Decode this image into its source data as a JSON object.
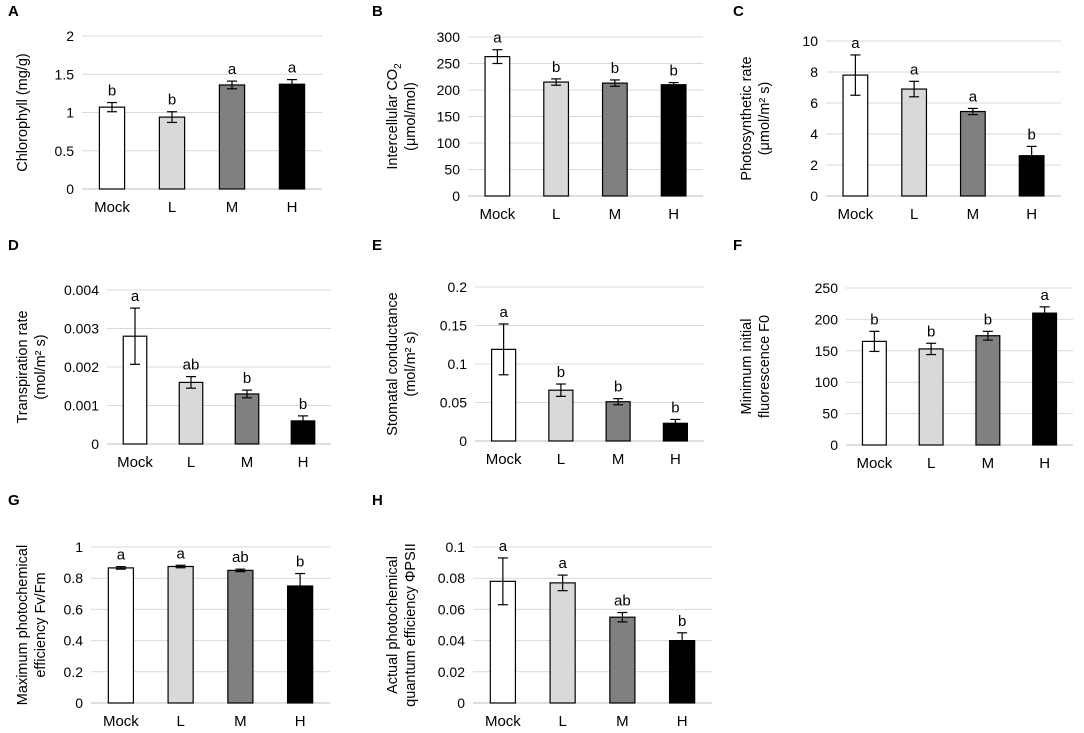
{
  "chart_data": [
    {
      "type": "bar",
      "panel": "A",
      "categories": [
        "Mock",
        "L",
        "M",
        "H"
      ],
      "values": [
        1.07,
        0.94,
        1.36,
        1.37
      ],
      "errors": [
        0.06,
        0.07,
        0.05,
        0.06
      ],
      "significance": [
        "b",
        "b",
        "a",
        "a"
      ],
      "ylabel_lines": [
        "Chlorophyll (mg/g)"
      ],
      "ylim": [
        0,
        2
      ],
      "yticks": [
        "0",
        "0.5",
        "1",
        "1.5",
        "2"
      ],
      "bar_colors": [
        "#ffffff",
        "#d9d9d9",
        "#808080",
        "#000000"
      ],
      "grid": true
    },
    {
      "type": "bar",
      "panel": "B",
      "categories": [
        "Mock",
        "L",
        "M",
        "H"
      ],
      "values": [
        263,
        215,
        213,
        210
      ],
      "errors": [
        13,
        6,
        6,
        4
      ],
      "significance": [
        "a",
        "b",
        "b",
        "b"
      ],
      "ylabel_lines": [
        "Intercellular CO",
        "(μmol/mol)"
      ],
      "ylabel_sub": "2",
      "ylim": [
        0,
        300
      ],
      "yticks": [
        "0",
        "50",
        "100",
        "150",
        "200",
        "250",
        "300"
      ],
      "bar_colors": [
        "#ffffff",
        "#d9d9d9",
        "#808080",
        "#000000"
      ],
      "grid": true
    },
    {
      "type": "bar",
      "panel": "C",
      "categories": [
        "Mock",
        "L",
        "M",
        "H"
      ],
      "values": [
        7.8,
        6.9,
        5.45,
        2.6
      ],
      "errors": [
        1.3,
        0.5,
        0.2,
        0.6
      ],
      "significance": [
        "a",
        "a",
        "a",
        "b"
      ],
      "ylabel_lines": [
        "Photosynthetic rate",
        "(μmol/m² s)"
      ],
      "ylim": [
        0,
        10
      ],
      "yticks": [
        "0",
        "2",
        "4",
        "6",
        "8",
        "10"
      ],
      "bar_colors": [
        "#ffffff",
        "#d9d9d9",
        "#808080",
        "#000000"
      ],
      "grid": true
    },
    {
      "type": "bar",
      "panel": "D",
      "categories": [
        "Mock",
        "L",
        "M",
        "H"
      ],
      "values": [
        0.0028,
        0.0016,
        0.0013,
        0.0006
      ],
      "errors": [
        0.00073,
        0.00015,
        0.0001,
        0.00013
      ],
      "significance": [
        "a",
        "ab",
        "b",
        "b"
      ],
      "ylabel_lines": [
        "Transpiration rate",
        "(mol/m² s)"
      ],
      "ylim": [
        0,
        0.004
      ],
      "yticks": [
        "0",
        "0.001",
        "0.002",
        "0.003",
        "0.004"
      ],
      "bar_colors": [
        "#ffffff",
        "#d9d9d9",
        "#808080",
        "#000000"
      ],
      "grid": true
    },
    {
      "type": "bar",
      "panel": "E",
      "categories": [
        "Mock",
        "L",
        "M",
        "H"
      ],
      "values": [
        0.119,
        0.066,
        0.051,
        0.023
      ],
      "errors": [
        0.033,
        0.008,
        0.004,
        0.005
      ],
      "significance": [
        "a",
        "b",
        "b",
        "b"
      ],
      "ylabel_lines": [
        "Stomatal conductance",
        "(mol/m² s)"
      ],
      "ylim": [
        0,
        0.2
      ],
      "yticks": [
        "0",
        "0.05",
        "0.1",
        "0.15",
        "0.2"
      ],
      "bar_colors": [
        "#ffffff",
        "#d9d9d9",
        "#808080",
        "#000000"
      ],
      "grid": true
    },
    {
      "type": "bar",
      "panel": "F",
      "categories": [
        "Mock",
        "L",
        "M",
        "H"
      ],
      "values": [
        165,
        153,
        174,
        210
      ],
      "errors": [
        16,
        9,
        7,
        10
      ],
      "significance": [
        "b",
        "b",
        "b",
        "a"
      ],
      "ylabel_lines": [
        "Minimum initial",
        "fluorescence F0"
      ],
      "ylim": [
        0,
        250
      ],
      "yticks": [
        "0",
        "50",
        "100",
        "150",
        "200",
        "250"
      ],
      "bar_colors": [
        "#ffffff",
        "#d9d9d9",
        "#808080",
        "#000000"
      ],
      "grid": true
    },
    {
      "type": "bar",
      "panel": "G",
      "categories": [
        "Mock",
        "L",
        "M",
        "H"
      ],
      "values": [
        0.866,
        0.875,
        0.85,
        0.75
      ],
      "errors": [
        0.008,
        0.008,
        0.008,
        0.08
      ],
      "significance": [
        "a",
        "a",
        "ab",
        "b"
      ],
      "ylabel_lines": [
        "Maximum photochemical",
        "efficiency Fv/Fm"
      ],
      "ylim": [
        0,
        1
      ],
      "yticks": [
        "0",
        "0.2",
        "0.4",
        "0.6",
        "0.8",
        "1"
      ],
      "bar_colors": [
        "#ffffff",
        "#d9d9d9",
        "#808080",
        "#000000"
      ],
      "grid": true
    },
    {
      "type": "bar",
      "panel": "H",
      "categories": [
        "Mock",
        "L",
        "M",
        "H"
      ],
      "values": [
        0.078,
        0.077,
        0.055,
        0.04
      ],
      "errors": [
        0.015,
        0.005,
        0.003,
        0.005
      ],
      "significance": [
        "a",
        "a",
        "ab",
        "b"
      ],
      "ylabel_lines": [
        "Actual photochemical",
        "quantum efficiency ΦPSII"
      ],
      "ylim": [
        0,
        0.1
      ],
      "yticks": [
        "0",
        "0.02",
        "0.04",
        "0.06",
        "0.08",
        "0.1"
      ],
      "bar_colors": [
        "#ffffff",
        "#d9d9d9",
        "#808080",
        "#000000"
      ],
      "grid": true
    }
  ]
}
